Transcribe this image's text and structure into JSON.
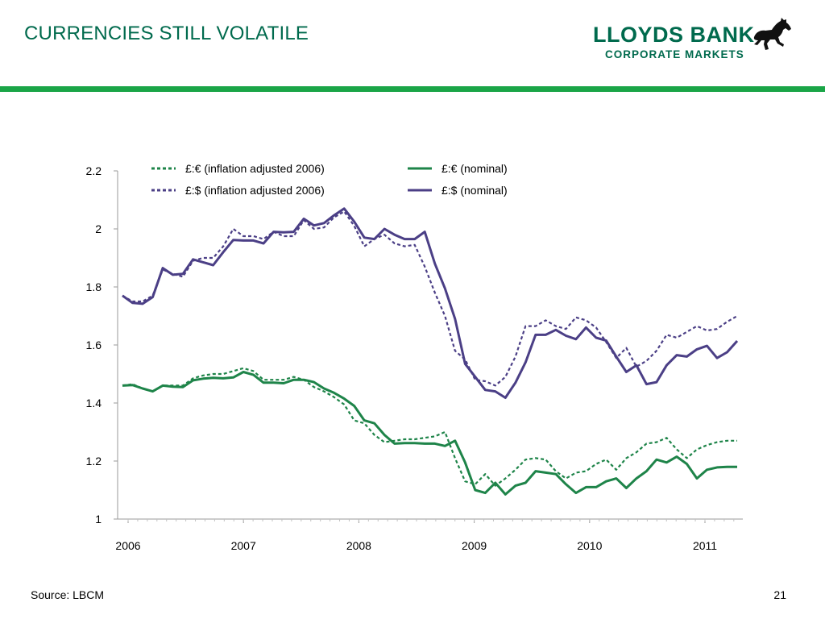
{
  "slide": {
    "title": "CURRENCIES STILL VOLATILE",
    "source": "Source: LBCM",
    "page_number": "21"
  },
  "logo": {
    "line1": "LLOYDS BANK",
    "line2": "CORPORATE MARKETS",
    "icon": "black-horse-icon"
  },
  "colors": {
    "brand_green": "#006a4d",
    "rule_green": "#1aa547",
    "eur_green": "#1e8449",
    "usd_purple": "#4b3f86"
  },
  "chart_data": {
    "type": "line",
    "ylim": [
      1,
      2.2
    ],
    "yticks": [
      "1",
      "1.2",
      "1.4",
      "1.6",
      "1.8",
      "2",
      "2.2"
    ],
    "xlim": [
      2006,
      2011.33
    ],
    "xticks": [
      "2006",
      "2007",
      "2008",
      "2009",
      "2010",
      "2011"
    ],
    "grid": false,
    "legend_position": "top",
    "series": [
      {
        "name": "£:€ (inflation adjusted 2006)",
        "style": "dashed",
        "color": "#1e8449",
        "values": [
          1.46,
          1.465,
          1.45,
          1.44,
          1.46,
          1.46,
          1.46,
          1.485,
          1.495,
          1.5,
          1.5,
          1.51,
          1.52,
          1.51,
          1.48,
          1.48,
          1.48,
          1.49,
          1.48,
          1.455,
          1.44,
          1.42,
          1.395,
          1.34,
          1.33,
          1.29,
          1.265,
          1.27,
          1.275,
          1.275,
          1.28,
          1.285,
          1.3,
          1.21,
          1.13,
          1.12,
          1.155,
          1.115,
          1.14,
          1.17,
          1.205,
          1.21,
          1.205,
          1.165,
          1.14,
          1.16,
          1.165,
          1.19,
          1.205,
          1.17,
          1.21,
          1.23,
          1.26,
          1.265,
          1.28,
          1.24,
          1.21,
          1.24,
          1.255,
          1.265,
          1.27,
          1.27
        ]
      },
      {
        "name": "£:€ (nominal)",
        "style": "solid",
        "color": "#1e8449",
        "values": [
          1.46,
          1.462,
          1.45,
          1.44,
          1.46,
          1.456,
          1.455,
          1.478,
          1.484,
          1.487,
          1.485,
          1.488,
          1.507,
          1.497,
          1.47,
          1.47,
          1.468,
          1.48,
          1.48,
          1.472,
          1.45,
          1.435,
          1.415,
          1.39,
          1.34,
          1.33,
          1.29,
          1.26,
          1.262,
          1.262,
          1.26,
          1.26,
          1.252,
          1.27,
          1.195,
          1.1,
          1.09,
          1.125,
          1.085,
          1.115,
          1.125,
          1.165,
          1.16,
          1.155,
          1.12,
          1.09,
          1.11,
          1.11,
          1.13,
          1.14,
          1.107,
          1.14,
          1.165,
          1.205,
          1.195,
          1.215,
          1.19,
          1.14,
          1.17,
          1.178,
          1.18,
          1.18
        ]
      },
      {
        "name": "£:$  (inflation adjusted 2006)",
        "style": "dashed",
        "color": "#4b3f86",
        "values": [
          1.77,
          1.75,
          1.75,
          1.77,
          1.86,
          1.845,
          1.835,
          1.89,
          1.9,
          1.9,
          1.94,
          2.0,
          1.975,
          1.975,
          1.965,
          1.99,
          1.975,
          1.975,
          2.03,
          2.0,
          2.005,
          2.04,
          2.06,
          2.01,
          1.94,
          1.965,
          1.98,
          1.95,
          1.94,
          1.945,
          1.87,
          1.78,
          1.7,
          1.58,
          1.55,
          1.48,
          1.475,
          1.46,
          1.49,
          1.56,
          1.665,
          1.665,
          1.685,
          1.665,
          1.655,
          1.695,
          1.685,
          1.66,
          1.61,
          1.555,
          1.59,
          1.525,
          1.545,
          1.58,
          1.635,
          1.625,
          1.645,
          1.665,
          1.65,
          1.655,
          1.68,
          1.7
        ]
      },
      {
        "name": "£:$ (nominal)",
        "style": "solid",
        "color": "#4b3f86",
        "values": [
          1.77,
          1.745,
          1.742,
          1.765,
          1.865,
          1.842,
          1.845,
          1.895,
          1.885,
          1.875,
          1.92,
          1.962,
          1.96,
          1.96,
          1.95,
          1.99,
          1.988,
          1.99,
          2.035,
          2.012,
          2.02,
          2.047,
          2.07,
          2.025,
          1.97,
          1.965,
          2.0,
          1.98,
          1.965,
          1.965,
          1.99,
          1.88,
          1.795,
          1.69,
          1.535,
          1.49,
          1.445,
          1.44,
          1.418,
          1.47,
          1.54,
          1.635,
          1.635,
          1.652,
          1.632,
          1.62,
          1.66,
          1.625,
          1.615,
          1.56,
          1.507,
          1.53,
          1.465,
          1.472,
          1.53,
          1.565,
          1.56,
          1.585,
          1.597,
          1.555,
          1.575,
          1.614
        ]
      }
    ]
  }
}
